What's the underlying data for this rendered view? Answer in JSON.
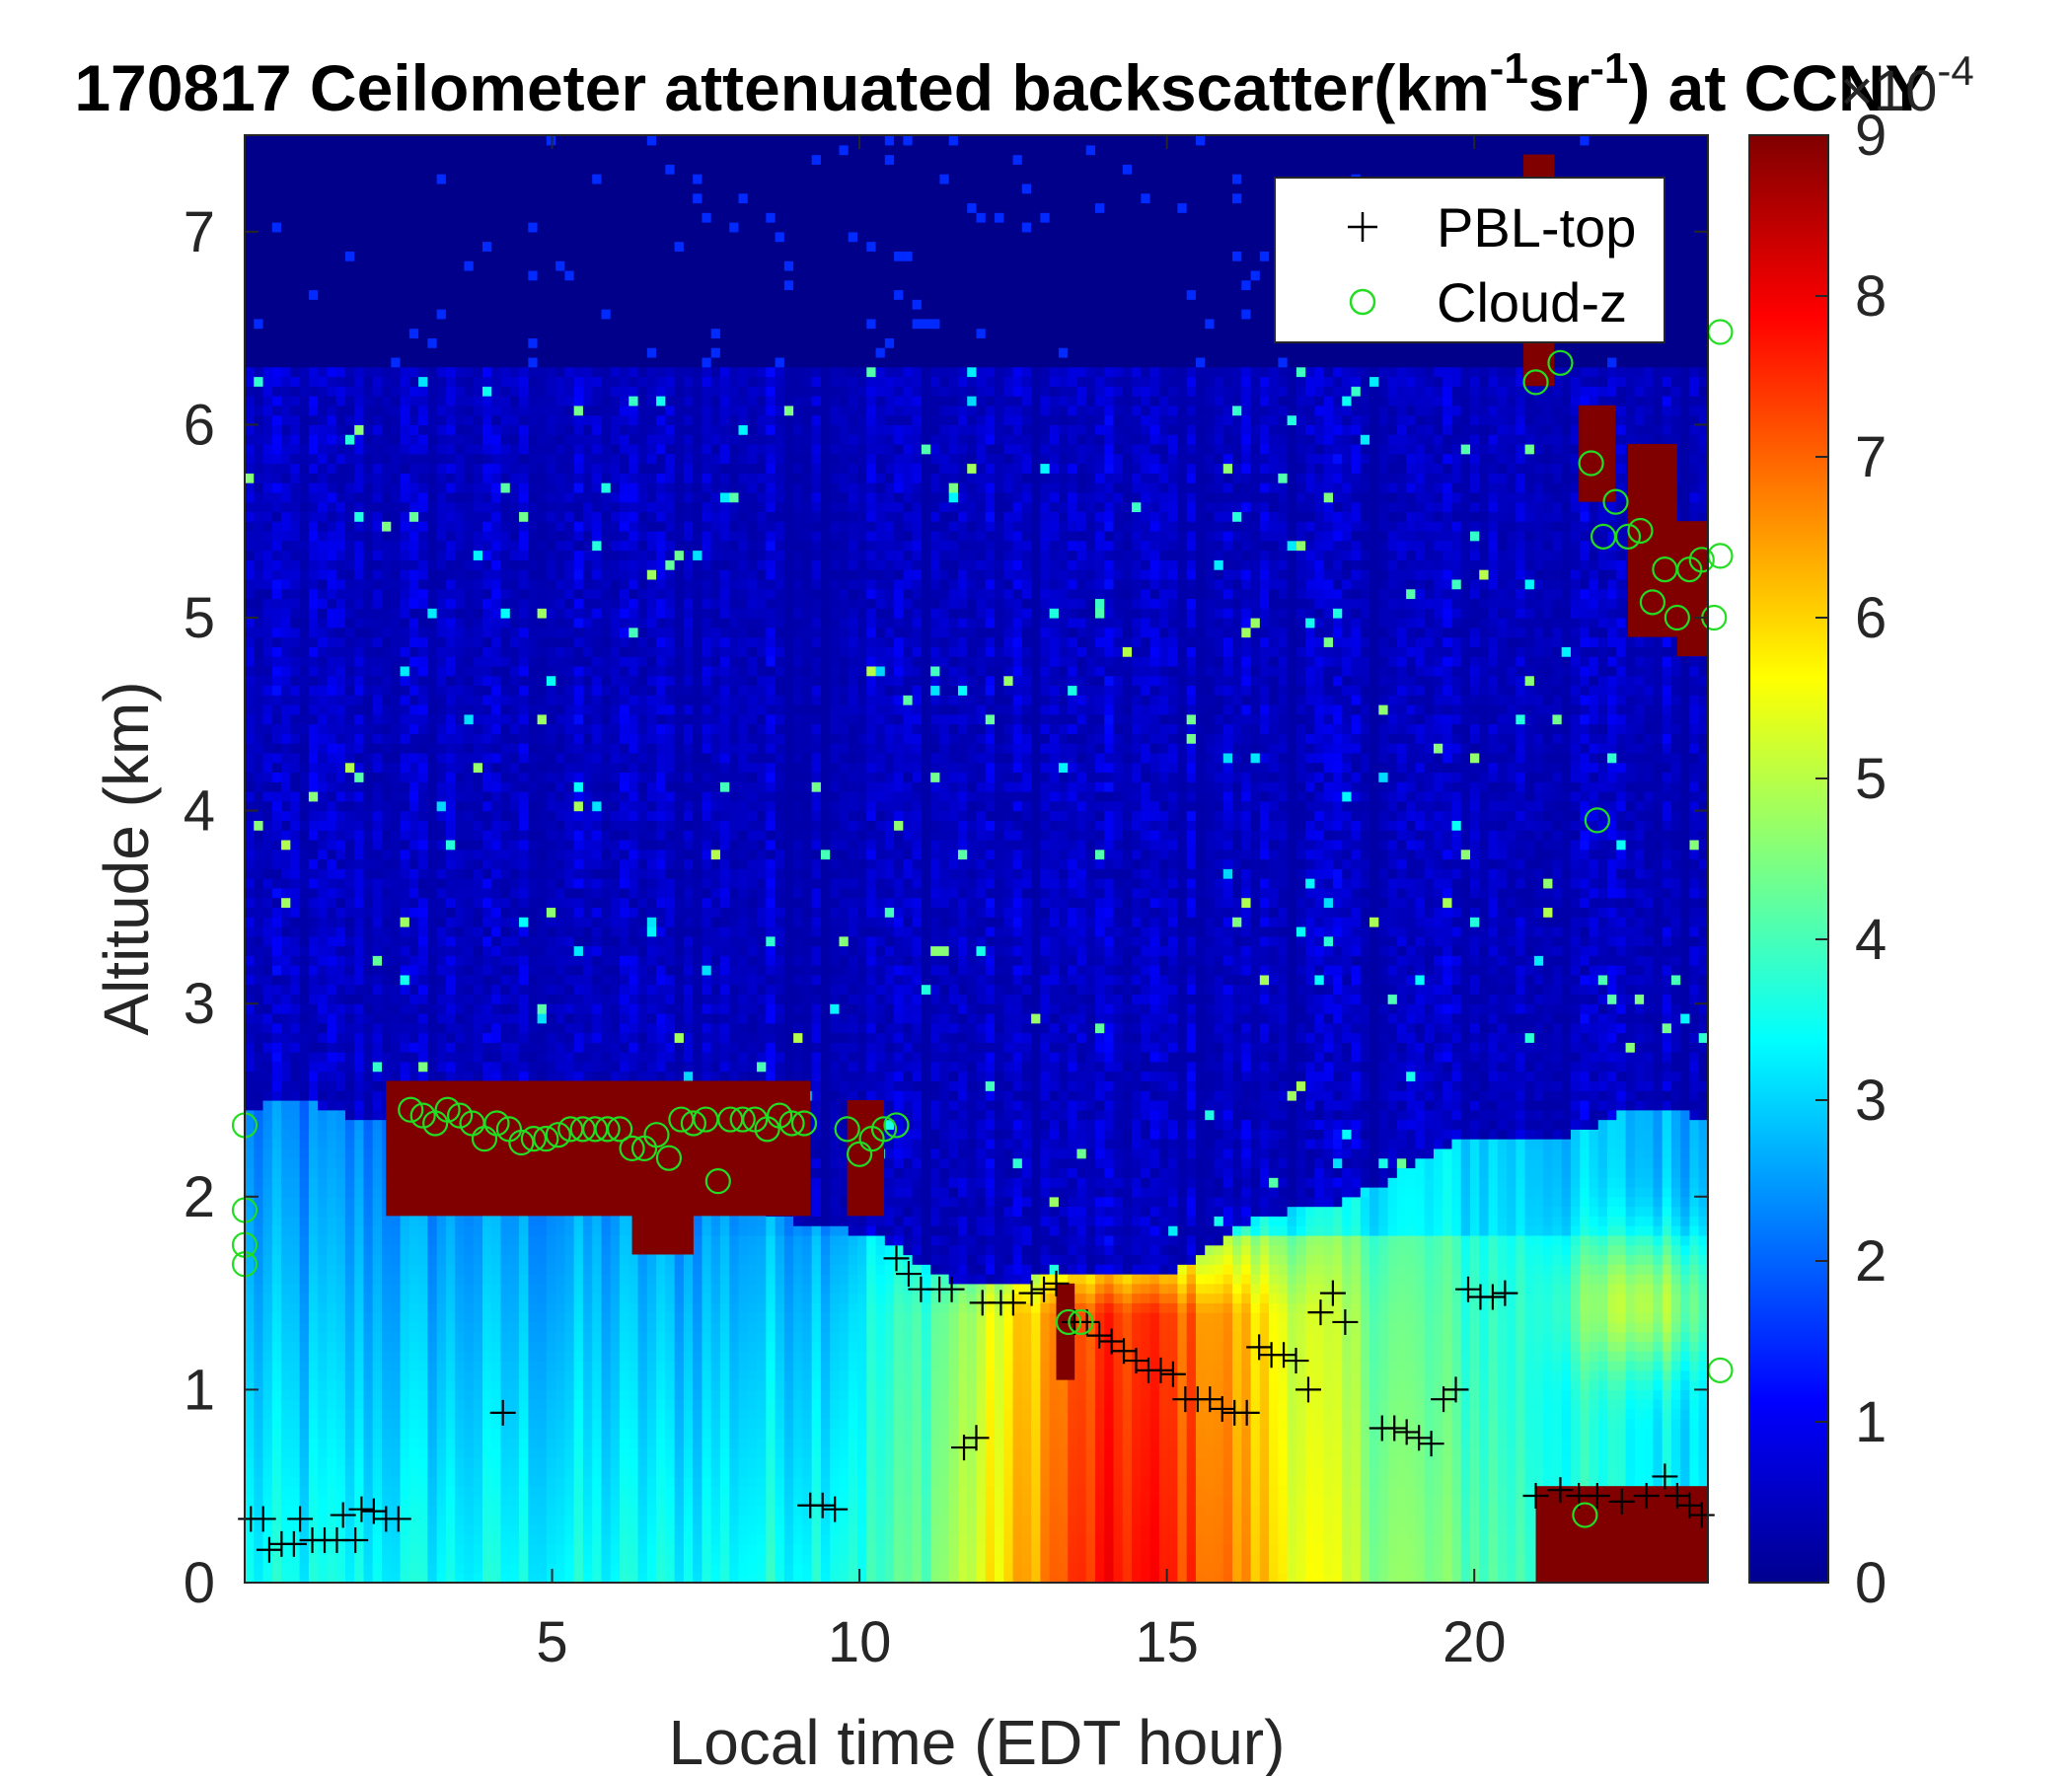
{
  "chart_data": {
    "type": "heatmap",
    "title": "170817 Ceilometer attenuated backscatter(km",
    "title_sup1": "-1",
    "title_mid": "sr",
    "title_sup2": "-1",
    "title_end": ") at CCNY",
    "xlabel": "Local time (EDT hour)",
    "ylabel": "Altitude (km)",
    "xlim": [
      0,
      23.8
    ],
    "ylim": [
      0,
      7.5
    ],
    "xticks": [
      "5",
      "10",
      "15",
      "20"
    ],
    "yticks": [
      "0",
      "1",
      "2",
      "3",
      "4",
      "5",
      "6",
      "7"
    ],
    "colorbar": {
      "colormap": "jet",
      "range": [
        0,
        9
      ],
      "ticks": [
        "0",
        "1",
        "2",
        "3",
        "4",
        "5",
        "6",
        "7",
        "8",
        "9"
      ],
      "exponent_base": "×10",
      "exponent_power": "-4"
    },
    "legend": {
      "placement": "top-right",
      "entries": [
        "PBL-top",
        "Cloud-z"
      ]
    },
    "series": [
      {
        "name": "PBL-top",
        "marker": "+",
        "color": "#000000",
        "points": [
          [
            0.1,
            0.33
          ],
          [
            0.3,
            0.33
          ],
          [
            0.4,
            0.17
          ],
          [
            0.6,
            0.2
          ],
          [
            0.8,
            0.2
          ],
          [
            0.9,
            0.33
          ],
          [
            1.1,
            0.22
          ],
          [
            1.3,
            0.22
          ],
          [
            1.5,
            0.22
          ],
          [
            1.6,
            0.35
          ],
          [
            1.8,
            0.22
          ],
          [
            1.9,
            0.38
          ],
          [
            2.1,
            0.37
          ],
          [
            2.3,
            0.33
          ],
          [
            2.5,
            0.33
          ],
          [
            4.2,
            0.88
          ],
          [
            9.2,
            0.4
          ],
          [
            9.4,
            0.4
          ],
          [
            9.6,
            0.38
          ],
          [
            10.6,
            1.68
          ],
          [
            10.8,
            1.6
          ],
          [
            11.0,
            1.52
          ],
          [
            11.3,
            1.52
          ],
          [
            11.5,
            1.52
          ],
          [
            11.7,
            0.7
          ],
          [
            11.9,
            0.75
          ],
          [
            12.0,
            1.45
          ],
          [
            12.3,
            1.45
          ],
          [
            12.5,
            1.45
          ],
          [
            12.8,
            1.5
          ],
          [
            13.0,
            1.52
          ],
          [
            13.2,
            1.55
          ],
          [
            13.5,
            1.35
          ],
          [
            13.7,
            1.35
          ],
          [
            13.9,
            1.28
          ],
          [
            14.1,
            1.25
          ],
          [
            14.3,
            1.2
          ],
          [
            14.5,
            1.15
          ],
          [
            14.7,
            1.1
          ],
          [
            14.9,
            1.1
          ],
          [
            15.1,
            1.08
          ],
          [
            15.3,
            0.95
          ],
          [
            15.5,
            0.95
          ],
          [
            15.7,
            0.95
          ],
          [
            15.9,
            0.9
          ],
          [
            16.1,
            0.88
          ],
          [
            16.3,
            0.88
          ],
          [
            16.5,
            1.22
          ],
          [
            16.7,
            1.18
          ],
          [
            16.9,
            1.18
          ],
          [
            17.1,
            1.15
          ],
          [
            17.3,
            1.0
          ],
          [
            17.5,
            1.4
          ],
          [
            17.7,
            1.5
          ],
          [
            17.9,
            1.35
          ],
          [
            18.5,
            0.8
          ],
          [
            18.7,
            0.8
          ],
          [
            18.9,
            0.78
          ],
          [
            19.1,
            0.75
          ],
          [
            19.3,
            0.72
          ],
          [
            19.5,
            0.95
          ],
          [
            19.7,
            1.0
          ],
          [
            19.9,
            1.52
          ],
          [
            20.1,
            1.48
          ],
          [
            20.3,
            1.48
          ],
          [
            20.5,
            1.5
          ],
          [
            21.0,
            0.45
          ],
          [
            21.4,
            0.48
          ],
          [
            21.7,
            0.45
          ],
          [
            22.0,
            0.45
          ],
          [
            22.4,
            0.42
          ],
          [
            22.8,
            0.45
          ],
          [
            23.1,
            0.55
          ],
          [
            23.3,
            0.45
          ],
          [
            23.5,
            0.4
          ],
          [
            23.7,
            0.35
          ]
        ]
      },
      {
        "name": "Cloud-z",
        "marker": "o",
        "color": "#22dd22",
        "points": [
          [
            0.0,
            2.37
          ],
          [
            0.0,
            1.93
          ],
          [
            0.0,
            1.75
          ],
          [
            0.0,
            1.65
          ],
          [
            2.7,
            2.45
          ],
          [
            2.9,
            2.42
          ],
          [
            3.1,
            2.38
          ],
          [
            3.3,
            2.45
          ],
          [
            3.5,
            2.42
          ],
          [
            3.7,
            2.38
          ],
          [
            3.9,
            2.3
          ],
          [
            4.1,
            2.38
          ],
          [
            4.3,
            2.35
          ],
          [
            4.5,
            2.28
          ],
          [
            4.7,
            2.3
          ],
          [
            4.9,
            2.3
          ],
          [
            5.1,
            2.32
          ],
          [
            5.3,
            2.35
          ],
          [
            5.5,
            2.35
          ],
          [
            5.7,
            2.35
          ],
          [
            5.9,
            2.35
          ],
          [
            6.1,
            2.35
          ],
          [
            6.3,
            2.25
          ],
          [
            6.5,
            2.25
          ],
          [
            6.7,
            2.32
          ],
          [
            6.9,
            2.2
          ],
          [
            7.1,
            2.4
          ],
          [
            7.3,
            2.38
          ],
          [
            7.5,
            2.4
          ],
          [
            7.7,
            2.08
          ],
          [
            7.9,
            2.4
          ],
          [
            8.1,
            2.4
          ],
          [
            8.3,
            2.4
          ],
          [
            8.5,
            2.35
          ],
          [
            8.7,
            2.42
          ],
          [
            8.9,
            2.38
          ],
          [
            9.1,
            2.38
          ],
          [
            9.8,
            2.35
          ],
          [
            10.0,
            2.22
          ],
          [
            10.2,
            2.3
          ],
          [
            10.4,
            2.35
          ],
          [
            10.6,
            2.37
          ],
          [
            13.4,
            1.35
          ],
          [
            13.6,
            1.35
          ],
          [
            21.0,
            6.22
          ],
          [
            21.4,
            6.32
          ],
          [
            21.9,
            5.8
          ],
          [
            22.1,
            5.42
          ],
          [
            22.3,
            5.6
          ],
          [
            22.5,
            5.42
          ],
          [
            22.7,
            5.45
          ],
          [
            22.9,
            5.08
          ],
          [
            23.1,
            5.25
          ],
          [
            23.3,
            5.0
          ],
          [
            23.5,
            5.25
          ],
          [
            23.7,
            5.3
          ],
          [
            23.9,
            5.0
          ],
          [
            24.0,
            5.32
          ],
          [
            22.0,
            3.95
          ],
          [
            21.8,
            0.35
          ],
          [
            24.0,
            6.48
          ],
          [
            24.0,
            1.1
          ]
        ]
      }
    ]
  }
}
